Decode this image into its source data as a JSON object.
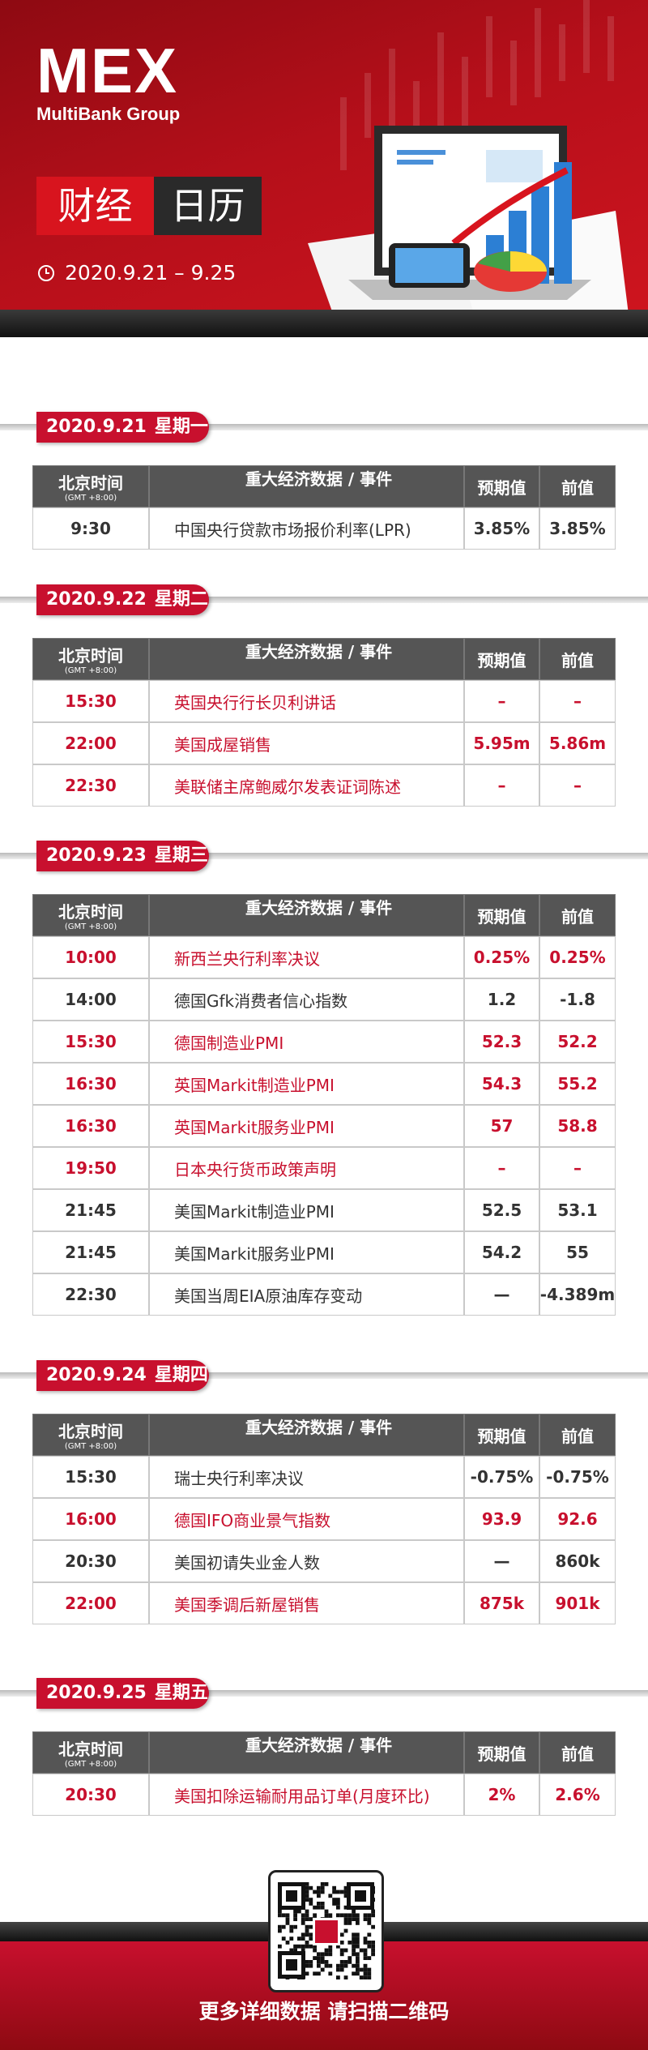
{
  "header": {
    "logo": "MEX",
    "brand": "MultiBank Group",
    "title_a": "财经",
    "title_b": "日历",
    "date_range": "2020.9.21 – 9.25"
  },
  "table_header": {
    "time": "北京时间",
    "timezone": "(GMT +8:00)",
    "event": "重大经济数据 / 事件",
    "forecast": "预期值",
    "previous": "前值"
  },
  "days": [
    {
      "date": "2020.9.21",
      "weekday": "星期一",
      "rows": [
        {
          "time": "9:30",
          "event": "中国央行贷款市场报价利率(LPR)",
          "forecast": "3.85%",
          "previous": "3.85%",
          "color": "#333333"
        }
      ]
    },
    {
      "date": "2020.9.22",
      "weekday": "星期二",
      "rows": [
        {
          "time": "15:30",
          "event": "英国央行行长贝利讲话",
          "forecast": "–",
          "previous": "–",
          "color": "#c8102e"
        },
        {
          "time": "22:00",
          "event": "美国成屋销售",
          "forecast": "5.95m",
          "previous": "5.86m",
          "color": "#c8102e"
        },
        {
          "time": "22:30",
          "event": "美联储主席鲍威尔发表证词陈述",
          "forecast": "–",
          "previous": "–",
          "color": "#c8102e"
        }
      ]
    },
    {
      "date": "2020.9.23",
      "weekday": "星期三",
      "rows": [
        {
          "time": "10:00",
          "event": "新西兰央行利率决议",
          "forecast": "0.25%",
          "previous": "0.25%",
          "color": "#c8102e"
        },
        {
          "time": "14:00",
          "event": "德国Gfk消费者信心指数",
          "forecast": "1.2",
          "previous": "-1.8",
          "color": "#333333"
        },
        {
          "time": "15:30",
          "event": "德国制造业PMI",
          "forecast": "52.3",
          "previous": "52.2",
          "color": "#c8102e"
        },
        {
          "time": "16:30",
          "event": "英国Markit制造业PMI",
          "forecast": "54.3",
          "previous": "55.2",
          "color": "#c8102e"
        },
        {
          "time": "16:30",
          "event": "英国Markit服务业PMI",
          "forecast": "57",
          "previous": "58.8",
          "color": "#c8102e"
        },
        {
          "time": "19:50",
          "event": "日本央行货币政策声明",
          "forecast": "–",
          "previous": "–",
          "color": "#c8102e"
        },
        {
          "time": "21:45",
          "event": "美国Markit制造业PMI",
          "forecast": "52.5",
          "previous": "53.1",
          "color": "#333333"
        },
        {
          "time": "21:45",
          "event": "美国Markit服务业PMI",
          "forecast": "54.2",
          "previous": "55",
          "color": "#333333"
        },
        {
          "time": "22:30",
          "event": "美国当周EIA原油库存变动",
          "forecast": "—",
          "previous": "-4.389m",
          "color": "#333333"
        }
      ]
    },
    {
      "date": "2020.9.24",
      "weekday": "星期四",
      "rows": [
        {
          "time": "15:30",
          "event": "瑞士央行利率决议",
          "forecast": "-0.75%",
          "previous": "-0.75%",
          "color": "#333333"
        },
        {
          "time": "16:00",
          "event": "德国IFO商业景气指数",
          "forecast": "93.9",
          "previous": "92.6",
          "color": "#c8102e"
        },
        {
          "time": "20:30",
          "event": "美国初请失业金人数",
          "forecast": "—",
          "previous": "860k",
          "color": "#333333"
        },
        {
          "time": "22:00",
          "event": "美国季调后新屋销售",
          "forecast": "875k",
          "previous": "901k",
          "color": "#c8102e"
        }
      ]
    },
    {
      "date": "2020.9.25",
      "weekday": "星期五",
      "rows": [
        {
          "time": "20:30",
          "event": "美国扣除运输耐用品订单(月度环比)",
          "forecast": "2%",
          "previous": "2.6%",
          "color": "#c8102e"
        }
      ]
    }
  ],
  "footer": {
    "cta": "更多详细数据 请扫描二维码"
  }
}
